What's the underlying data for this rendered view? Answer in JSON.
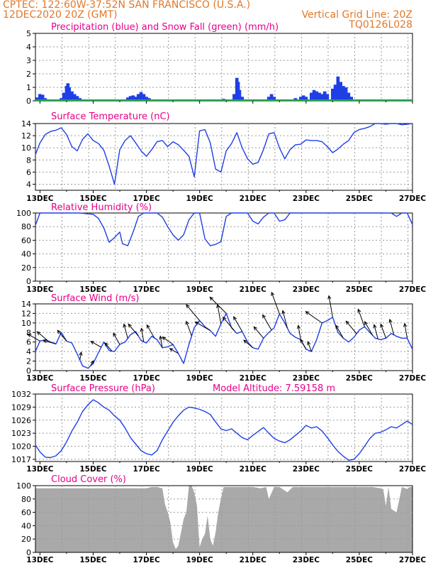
{
  "header": {
    "line1_left": "CPTEC:   122:60W-37:52N  SAN FRANCISCO (U.S.A.)",
    "line2_left": "12DEC2020 20Z (GMT)",
    "line2_right": "Vertical Grid Line: 20Z",
    "line3_right": "TQ0126L028"
  },
  "colors": {
    "header": "#e0782a",
    "panel_title": "#e6008a",
    "series": "#1f3fe6",
    "snow": "#1aa84a",
    "cloud": "#a9a9a9",
    "grid": "#9a9a9a"
  },
  "x_labels": [
    "13DEC",
    "15DEC",
    "17DEC",
    "19DEC",
    "21DEC",
    "23DEC",
    "25DEC",
    "27DEC"
  ],
  "chart_data": [
    {
      "id": "precip",
      "type": "bar",
      "title": "Precipitation (blue) and Snow Fall (green) (mm/h)",
      "ylim": [
        0,
        5
      ],
      "yticks": [
        "0",
        "1",
        "2",
        "3",
        "4",
        "5"
      ],
      "x_range_days": [
        12.83,
        27.0
      ],
      "x_tick_labels": [],
      "series": [
        {
          "name": "Precipitation",
          "points": [
            [
              12.9,
              0.25
            ],
            [
              13.0,
              0.5
            ],
            [
              13.1,
              0.45
            ],
            [
              13.2,
              0.2
            ],
            [
              13.3,
              0.1
            ],
            [
              13.8,
              0.2
            ],
            [
              13.9,
              0.6
            ],
            [
              14.0,
              1.1
            ],
            [
              14.05,
              1.3
            ],
            [
              14.1,
              1.0
            ],
            [
              14.2,
              0.7
            ],
            [
              14.3,
              0.5
            ],
            [
              14.4,
              0.35
            ],
            [
              14.5,
              0.2
            ],
            [
              16.3,
              0.25
            ],
            [
              16.4,
              0.35
            ],
            [
              16.5,
              0.4
            ],
            [
              16.6,
              0.3
            ],
            [
              16.7,
              0.5
            ],
            [
              16.8,
              0.65
            ],
            [
              16.9,
              0.5
            ],
            [
              17.0,
              0.3
            ],
            [
              17.1,
              0.2
            ],
            [
              19.9,
              0.15
            ],
            [
              20.3,
              0.5
            ],
            [
              20.4,
              1.7
            ],
            [
              20.45,
              1.4
            ],
            [
              20.5,
              0.8
            ],
            [
              20.6,
              0.3
            ],
            [
              21.6,
              0.3
            ],
            [
              21.7,
              0.5
            ],
            [
              21.8,
              0.3
            ],
            [
              22.6,
              0.2
            ],
            [
              22.8,
              0.3
            ],
            [
              22.9,
              0.4
            ],
            [
              23.0,
              0.3
            ],
            [
              23.2,
              0.6
            ],
            [
              23.3,
              0.8
            ],
            [
              23.4,
              0.7
            ],
            [
              23.5,
              0.6
            ],
            [
              23.6,
              0.5
            ],
            [
              23.7,
              0.7
            ],
            [
              23.8,
              0.5
            ],
            [
              24.0,
              0.9
            ],
            [
              24.1,
              1.2
            ],
            [
              24.2,
              1.8
            ],
            [
              24.3,
              1.4
            ],
            [
              24.4,
              1.1
            ],
            [
              24.5,
              1.0
            ],
            [
              24.6,
              0.6
            ],
            [
              24.7,
              0.3
            ],
            [
              24.8,
              0.1
            ]
          ]
        },
        {
          "name": "Snow Fall",
          "points": []
        }
      ]
    },
    {
      "id": "temperature",
      "type": "line",
      "title": "Surface Temperature (nC)",
      "ylim": [
        3,
        14
      ],
      "yticks": [
        "4",
        "6",
        "8",
        "10",
        "12",
        "14"
      ],
      "x_range_days": [
        12.83,
        27.0
      ],
      "x_tick_labels": [
        "13DEC",
        "15DEC",
        "17DEC",
        "19DEC",
        "21DEC",
        "23DEC",
        "25DEC",
        "27DEC"
      ],
      "x": [
        12.83,
        13.0,
        13.2,
        13.4,
        13.6,
        13.8,
        14.0,
        14.2,
        14.4,
        14.6,
        14.8,
        15.0,
        15.2,
        15.4,
        15.6,
        15.8,
        16.0,
        16.2,
        16.4,
        16.6,
        16.8,
        17.0,
        17.2,
        17.4,
        17.6,
        17.8,
        18.0,
        18.2,
        18.4,
        18.6,
        18.8,
        19.0,
        19.2,
        19.4,
        19.6,
        19.8,
        20.0,
        20.2,
        20.4,
        20.6,
        20.8,
        21.0,
        21.2,
        21.4,
        21.6,
        21.8,
        22.0,
        22.2,
        22.4,
        22.6,
        22.8,
        23.0,
        23.2,
        23.4,
        23.6,
        23.8,
        24.0,
        24.2,
        24.4,
        24.6,
        24.8,
        25.0,
        25.2,
        25.4,
        25.6,
        25.8,
        26.0,
        26.2,
        26.4,
        26.6,
        26.8,
        27.0
      ],
      "y": [
        8.9,
        10.8,
        12.2,
        12.7,
        12.9,
        13.3,
        12.2,
        10.2,
        9.5,
        11.4,
        12.3,
        11.2,
        10.7,
        9.6,
        7.0,
        4.0,
        9.7,
        11.2,
        12.0,
        10.8,
        9.5,
        8.6,
        9.7,
        11.0,
        11.2,
        10.2,
        11.0,
        10.5,
        9.6,
        8.6,
        5.2,
        12.8,
        13.0,
        10.8,
        6.5,
        6.0,
        9.5,
        10.7,
        12.5,
        10.0,
        8.2,
        7.3,
        7.6,
        9.7,
        12.3,
        12.5,
        10.0,
        8.2,
        9.7,
        10.5,
        10.6,
        11.3,
        11.2,
        11.2,
        11.0,
        10.2,
        9.2,
        9.8,
        10.6,
        11.2,
        12.5,
        13.0,
        13.2,
        13.5,
        14.0,
        14.0,
        13.9,
        14.0,
        14.0,
        13.8,
        13.9,
        14.0
      ]
    },
    {
      "id": "humidity",
      "type": "line",
      "title": "Relative Humidity (%)",
      "ylim": [
        0,
        100
      ],
      "yticks": [
        "0",
        "20",
        "40",
        "60",
        "80",
        "100"
      ],
      "x_range_days": [
        12.83,
        27.0
      ],
      "x_tick_labels": [
        "13DEC",
        "15DEC",
        "17DEC",
        "19DEC",
        "21DEC",
        "23DEC",
        "25DEC",
        "27DEC"
      ],
      "x": [
        12.83,
        13.0,
        13.2,
        13.5,
        14.0,
        14.5,
        15.0,
        15.2,
        15.4,
        15.6,
        15.8,
        16.0,
        16.1,
        16.3,
        16.5,
        16.7,
        16.9,
        17.0,
        17.2,
        17.4,
        17.6,
        17.8,
        18.0,
        18.2,
        18.4,
        18.6,
        18.8,
        19.0,
        19.2,
        19.4,
        19.6,
        19.8,
        20.0,
        20.2,
        20.4,
        20.6,
        20.8,
        21.0,
        21.2,
        21.4,
        21.6,
        21.8,
        22.0,
        22.2,
        22.4,
        22.6,
        22.8,
        23.0,
        23.2,
        23.4,
        23.6,
        23.8,
        24.0,
        24.2,
        24.4,
        24.6,
        24.8,
        25.0,
        25.2,
        25.4,
        25.6,
        25.8,
        26.0,
        26.2,
        26.4,
        26.6,
        26.8,
        27.0
      ],
      "y": [
        82,
        100,
        100,
        100,
        100,
        100,
        98,
        92,
        78,
        57,
        64,
        72,
        55,
        52,
        72,
        95,
        100,
        100,
        100,
        100,
        94,
        80,
        68,
        60,
        68,
        90,
        100,
        100,
        62,
        52,
        54,
        58,
        95,
        100,
        100,
        100,
        100,
        88,
        84,
        94,
        100,
        100,
        88,
        90,
        100,
        100,
        100,
        100,
        100,
        100,
        100,
        100,
        100,
        100,
        100,
        100,
        100,
        100,
        100,
        100,
        100,
        100,
        100,
        100,
        95,
        100,
        100,
        83
      ]
    },
    {
      "id": "wind",
      "type": "line",
      "title": "Surface Wind (m/s)",
      "ylim": [
        0,
        14
      ],
      "yticks": [
        "0",
        "2",
        "4",
        "6",
        "8",
        "10",
        "12",
        "14"
      ],
      "x_range_days": [
        12.83,
        27.0
      ],
      "x_tick_labels": [
        "13DEC",
        "15DEC",
        "17DEC",
        "19DEC",
        "21DEC",
        "23DEC",
        "25DEC",
        "27DEC"
      ],
      "x": [
        12.83,
        13.0,
        13.2,
        13.4,
        13.6,
        13.8,
        14.0,
        14.2,
        14.4,
        14.6,
        14.8,
        15.0,
        15.2,
        15.4,
        15.6,
        15.8,
        16.0,
        16.2,
        16.4,
        16.6,
        16.8,
        17.0,
        17.2,
        17.4,
        17.6,
        17.8,
        18.0,
        18.2,
        18.4,
        18.6,
        18.8,
        19.0,
        19.2,
        19.4,
        19.6,
        19.8,
        20.0,
        20.2,
        20.4,
        20.6,
        20.8,
        21.0,
        21.2,
        21.4,
        21.6,
        21.8,
        22.0,
        22.2,
        22.4,
        22.6,
        22.8,
        23.0,
        23.2,
        23.4,
        23.6,
        23.8,
        24.0,
        24.2,
        24.4,
        24.6,
        24.8,
        25.0,
        25.2,
        25.4,
        25.6,
        25.8,
        26.0,
        26.2,
        26.4,
        26.6,
        26.8,
        27.0
      ],
      "y": [
        4.0,
        6.2,
        6.5,
        6.0,
        5.6,
        8.0,
        6.2,
        5.8,
        3.5,
        1.0,
        0.5,
        1.5,
        3.8,
        6.0,
        4.2,
        4.0,
        5.5,
        6.0,
        7.5,
        8.2,
        6.3,
        5.8,
        7.2,
        6.5,
        4.8,
        5.0,
        5.5,
        3.6,
        1.5,
        5.5,
        9.0,
        10.5,
        9.2,
        8.4,
        7.2,
        9.8,
        12.0,
        9.0,
        7.8,
        8.2,
        6.0,
        4.8,
        4.5,
        6.8,
        8.0,
        9.0,
        11.9,
        10.0,
        7.8,
        7.0,
        6.5,
        4.5,
        4.0,
        6.5,
        10.0,
        10.5,
        11.2,
        8.0,
        6.8,
        6.0,
        7.0,
        8.5,
        9.2,
        8.0,
        6.8,
        6.5,
        6.8,
        7.8,
        7.2,
        6.8,
        6.8,
        4.5
      ],
      "arrows": [
        [
          13.0,
          300
        ],
        [
          13.3,
          310
        ],
        [
          13.6,
          285
        ],
        [
          14.0,
          320
        ],
        [
          14.5,
          10
        ],
        [
          14.9,
          30
        ],
        [
          15.3,
          300
        ],
        [
          15.7,
          320
        ],
        [
          16.0,
          330
        ],
        [
          16.3,
          345
        ],
        [
          16.7,
          320
        ],
        [
          16.9,
          350
        ],
        [
          17.3,
          330
        ],
        [
          17.6,
          350
        ],
        [
          18.0,
          305
        ],
        [
          18.2,
          300
        ],
        [
          18.7,
          340
        ],
        [
          19.0,
          320
        ],
        [
          19.4,
          300
        ],
        [
          19.8,
          350
        ],
        [
          20.0,
          315
        ],
        [
          20.3,
          320
        ],
        [
          20.6,
          330
        ],
        [
          21.0,
          310
        ],
        [
          21.4,
          320
        ],
        [
          21.7,
          330
        ],
        [
          22.0,
          340
        ],
        [
          22.3,
          345
        ],
        [
          22.8,
          350
        ],
        [
          23.0,
          330
        ],
        [
          23.2,
          340
        ],
        [
          23.6,
          305
        ],
        [
          24.0,
          350
        ],
        [
          24.4,
          330
        ],
        [
          24.9,
          320
        ],
        [
          25.2,
          340
        ],
        [
          25.5,
          330
        ],
        [
          25.7,
          345
        ],
        [
          26.0,
          340
        ],
        [
          26.3,
          345
        ],
        [
          26.8,
          350
        ]
      ]
    },
    {
      "id": "pressure",
      "type": "line",
      "title": "Surface Pressure (hPa)",
      "annotation": "Model Altitude: 7.59158 m",
      "ylim": [
        1016.5,
        1032
      ],
      "yticks": [
        "1017",
        "1020",
        "1023",
        "1026",
        "1029",
        "1032"
      ],
      "x_range_days": [
        12.83,
        27.0
      ],
      "x_tick_labels": [
        "13DEC",
        "15DEC",
        "17DEC",
        "19DEC",
        "21DEC",
        "23DEC",
        "25DEC",
        "27DEC"
      ],
      "x": [
        12.83,
        13.0,
        13.2,
        13.4,
        13.6,
        13.8,
        14.0,
        14.2,
        14.4,
        14.6,
        14.8,
        15.0,
        15.2,
        15.4,
        15.6,
        15.8,
        16.0,
        16.2,
        16.4,
        16.6,
        16.8,
        17.0,
        17.2,
        17.4,
        17.6,
        17.8,
        18.0,
        18.2,
        18.4,
        18.6,
        18.8,
        19.0,
        19.2,
        19.4,
        19.6,
        19.8,
        20.0,
        20.2,
        20.4,
        20.6,
        20.8,
        21.0,
        21.2,
        21.4,
        21.6,
        21.8,
        22.0,
        22.2,
        22.4,
        22.6,
        22.8,
        23.0,
        23.2,
        23.4,
        23.6,
        23.8,
        24.0,
        24.2,
        24.4,
        24.6,
        24.8,
        25.0,
        25.2,
        25.4,
        25.6,
        25.8,
        26.0,
        26.2,
        26.4,
        26.6,
        26.8,
        27.0
      ],
      "y": [
        1020.3,
        1018.7,
        1017.5,
        1017.4,
        1017.8,
        1019.0,
        1021.0,
        1023.5,
        1025.5,
        1028.0,
        1029.5,
        1030.7,
        1030.0,
        1029.0,
        1028.3,
        1027.0,
        1026.0,
        1024.2,
        1022.0,
        1020.5,
        1019.0,
        1018.3,
        1018.0,
        1019.0,
        1021.5,
        1023.5,
        1025.5,
        1027.0,
        1028.3,
        1029.0,
        1028.8,
        1028.5,
        1028.0,
        1027.3,
        1025.6,
        1024.0,
        1023.6,
        1024.0,
        1023.0,
        1022.0,
        1021.5,
        1022.5,
        1023.4,
        1024.3,
        1023.0,
        1021.8,
        1021.2,
        1020.8,
        1021.5,
        1022.5,
        1023.5,
        1024.8,
        1024.2,
        1024.5,
        1023.5,
        1022.0,
        1020.3,
        1018.8,
        1017.7,
        1016.8,
        1017.0,
        1018.3,
        1020.0,
        1021.8,
        1023.0,
        1023.2,
        1023.8,
        1024.5,
        1024.2,
        1025.0,
        1025.8,
        1025.0
      ]
    },
    {
      "id": "cloud",
      "type": "area",
      "title": "Cloud Cover (%)",
      "ylim": [
        0,
        100
      ],
      "yticks": [
        "0",
        "20",
        "40",
        "60",
        "80",
        "100"
      ],
      "x_range_days": [
        12.83,
        27.0
      ],
      "x_tick_labels": [
        "13DEC",
        "15DEC",
        "17DEC",
        "19DEC",
        "21DEC",
        "23DEC",
        "25DEC",
        "27DEC"
      ],
      "x": [
        12.83,
        13.0,
        13.5,
        14.0,
        14.5,
        15.0,
        15.5,
        16.0,
        16.5,
        17.0,
        17.2,
        17.4,
        17.6,
        17.7,
        17.8,
        17.9,
        18.0,
        18.1,
        18.2,
        18.3,
        18.4,
        18.5,
        18.6,
        18.7,
        18.8,
        18.9,
        19.0,
        19.1,
        19.2,
        19.3,
        19.4,
        19.5,
        19.6,
        19.7,
        19.8,
        19.9,
        20.0,
        20.2,
        20.5,
        21.0,
        21.3,
        21.5,
        21.6,
        21.8,
        22.0,
        22.3,
        22.5,
        23.0,
        23.5,
        24.0,
        24.5,
        25.0,
        25.5,
        25.8,
        25.9,
        26.0,
        26.1,
        26.2,
        26.4,
        26.6,
        26.8,
        26.9,
        27.0
      ],
      "y": [
        96,
        96,
        96,
        96,
        96,
        96,
        96,
        96,
        96,
        96,
        98,
        98,
        96,
        72,
        60,
        45,
        15,
        5,
        10,
        30,
        50,
        60,
        100,
        100,
        90,
        70,
        8,
        20,
        28,
        55,
        20,
        10,
        30,
        60,
        80,
        98,
        98,
        98,
        98,
        98,
        96,
        98,
        80,
        98,
        98,
        90,
        98,
        98,
        98,
        98,
        98,
        98,
        98,
        96,
        95,
        70,
        98,
        65,
        60,
        98,
        95,
        98,
        98
      ]
    }
  ]
}
